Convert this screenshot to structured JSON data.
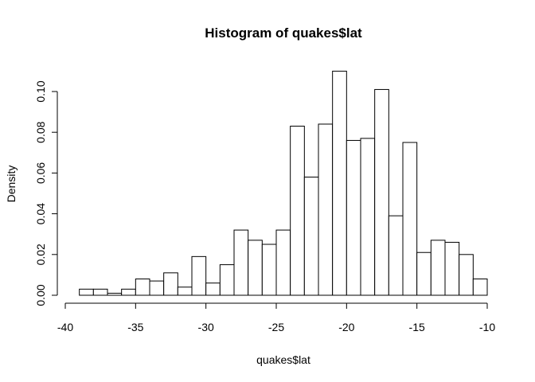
{
  "chart_data": {
    "type": "bar",
    "title": "Histogram of quakes$lat",
    "xlabel": "quakes$lat",
    "ylabel": "Density",
    "xlim": [
      -40,
      -10
    ],
    "ylim": [
      0,
      0.1
    ],
    "x_ticks": [
      -40,
      -35,
      -30,
      -25,
      -20,
      -15,
      -10
    ],
    "x_tick_labels": [
      "-40",
      "-35",
      "-30",
      "-25",
      "-20",
      "-15",
      "-10"
    ],
    "y_ticks": [
      0,
      0.02,
      0.04,
      0.06,
      0.08,
      0.1
    ],
    "y_tick_labels": [
      "0.00",
      "0.02",
      "0.04",
      "0.06",
      "0.08",
      "0.10"
    ],
    "bin_width": 1,
    "bins": [
      {
        "start": -39,
        "end": -38,
        "density": 0.003
      },
      {
        "start": -38,
        "end": -37,
        "density": 0.003
      },
      {
        "start": -37,
        "end": -36,
        "density": 0.001
      },
      {
        "start": -36,
        "end": -35,
        "density": 0.003
      },
      {
        "start": -35,
        "end": -34,
        "density": 0.008
      },
      {
        "start": -34,
        "end": -33,
        "density": 0.007
      },
      {
        "start": -33,
        "end": -32,
        "density": 0.011
      },
      {
        "start": -32,
        "end": -31,
        "density": 0.004
      },
      {
        "start": -31,
        "end": -30,
        "density": 0.019
      },
      {
        "start": -30,
        "end": -29,
        "density": 0.006
      },
      {
        "start": -29,
        "end": -28,
        "density": 0.015
      },
      {
        "start": -28,
        "end": -27,
        "density": 0.032
      },
      {
        "start": -27,
        "end": -26,
        "density": 0.027
      },
      {
        "start": -26,
        "end": -25,
        "density": 0.025
      },
      {
        "start": -25,
        "end": -24,
        "density": 0.032
      },
      {
        "start": -24,
        "end": -23,
        "density": 0.083
      },
      {
        "start": -23,
        "end": -22,
        "density": 0.058
      },
      {
        "start": -22,
        "end": -21,
        "density": 0.084
      },
      {
        "start": -21,
        "end": -20,
        "density": 0.11
      },
      {
        "start": -20,
        "end": -19,
        "density": 0.076
      },
      {
        "start": -19,
        "end": -18,
        "density": 0.077
      },
      {
        "start": -18,
        "end": -17,
        "density": 0.101
      },
      {
        "start": -17,
        "end": -16,
        "density": 0.039
      },
      {
        "start": -16,
        "end": -15,
        "density": 0.075
      },
      {
        "start": -15,
        "end": -14,
        "density": 0.021
      },
      {
        "start": -14,
        "end": -13,
        "density": 0.027
      },
      {
        "start": -13,
        "end": -12,
        "density": 0.026
      },
      {
        "start": -12,
        "end": -11,
        "density": 0.02
      },
      {
        "start": -11,
        "end": -10,
        "density": 0.008
      }
    ],
    "bar_fill": "#ffffff",
    "bar_stroke": "#000000",
    "grid": false,
    "legend": "none"
  }
}
